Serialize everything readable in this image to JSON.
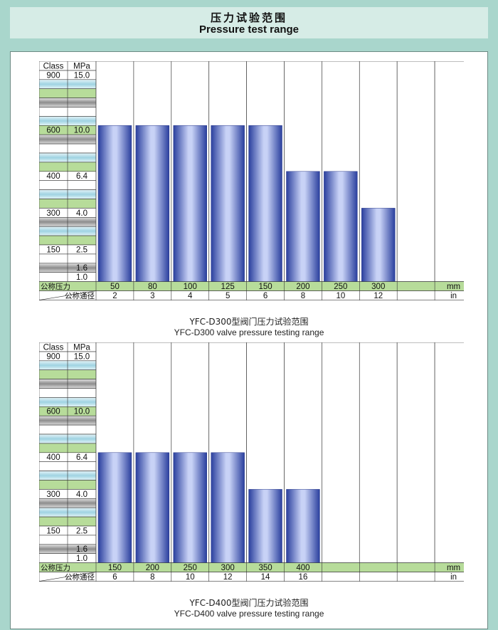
{
  "header": {
    "title_cn": "压力试验范围",
    "title_en": "Pressure test range"
  },
  "colors": {
    "background": "#a9d6cc",
    "bar": "#3d53b8",
    "green_row": "#b7dc9a",
    "blue_row": "#bfe2ea",
    "gray_row": "#a8a8a8"
  },
  "chart_data": [
    {
      "type": "bar",
      "caption_cn": "YFC-D300型阀门压力试验范围",
      "caption_en": "YFC-D300 valve pressure testing range",
      "axis_header": {
        "class": "Class",
        "mpa": "MPa"
      },
      "row_labels": {
        "pressure": "公称压力",
        "diameter": "公称通径"
      },
      "unit_mm": "mm",
      "unit_in": "in",
      "ylim": [
        1.0,
        15.0
      ],
      "levels": [
        {
          "class": "900",
          "mpa": "15.0",
          "value": 15.0
        },
        {
          "class": "600",
          "mpa": "10.0",
          "value": 10.0
        },
        {
          "class": "400",
          "mpa": "6.4",
          "value": 6.4
        },
        {
          "class": "300",
          "mpa": "4.0",
          "value": 4.0
        },
        {
          "class": "150",
          "mpa": "2.5",
          "value": 2.5
        },
        {
          "class": "",
          "mpa": "1.6",
          "value": 1.6
        },
        {
          "class": "",
          "mpa": "1.0",
          "value": 1.0
        }
      ],
      "categories_mm": [
        "50",
        "80",
        "100",
        "125",
        "150",
        "200",
        "250",
        "300",
        "",
        ""
      ],
      "categories_in": [
        "2",
        "3",
        "4",
        "5",
        "6",
        "8",
        "10",
        "12",
        "",
        ""
      ],
      "values": [
        10.0,
        10.0,
        10.0,
        10.0,
        10.0,
        6.4,
        6.4,
        4.0,
        null,
        null
      ]
    },
    {
      "type": "bar",
      "caption_cn": "YFC-D400型阀门压力试验范围",
      "caption_en": "YFC-D400 valve pressure testing range",
      "axis_header": {
        "class": "Class",
        "mpa": "MPa"
      },
      "row_labels": {
        "pressure": "公称压力",
        "diameter": "公称通径"
      },
      "unit_mm": "mm",
      "unit_in": "in",
      "ylim": [
        1.0,
        15.0
      ],
      "levels": [
        {
          "class": "900",
          "mpa": "15.0",
          "value": 15.0
        },
        {
          "class": "600",
          "mpa": "10.0",
          "value": 10.0
        },
        {
          "class": "400",
          "mpa": "6.4",
          "value": 6.4
        },
        {
          "class": "300",
          "mpa": "4.0",
          "value": 4.0
        },
        {
          "class": "150",
          "mpa": "2.5",
          "value": 2.5
        },
        {
          "class": "",
          "mpa": "1.6",
          "value": 1.6
        },
        {
          "class": "",
          "mpa": "1.0",
          "value": 1.0
        }
      ],
      "categories_mm": [
        "150",
        "200",
        "250",
        "300",
        "350",
        "400",
        "",
        "",
        "",
        ""
      ],
      "categories_in": [
        "6",
        "8",
        "10",
        "12",
        "14",
        "16",
        "",
        "",
        "",
        ""
      ],
      "values": [
        6.4,
        6.4,
        6.4,
        6.4,
        4.0,
        4.0,
        null,
        null,
        null,
        null
      ]
    }
  ]
}
